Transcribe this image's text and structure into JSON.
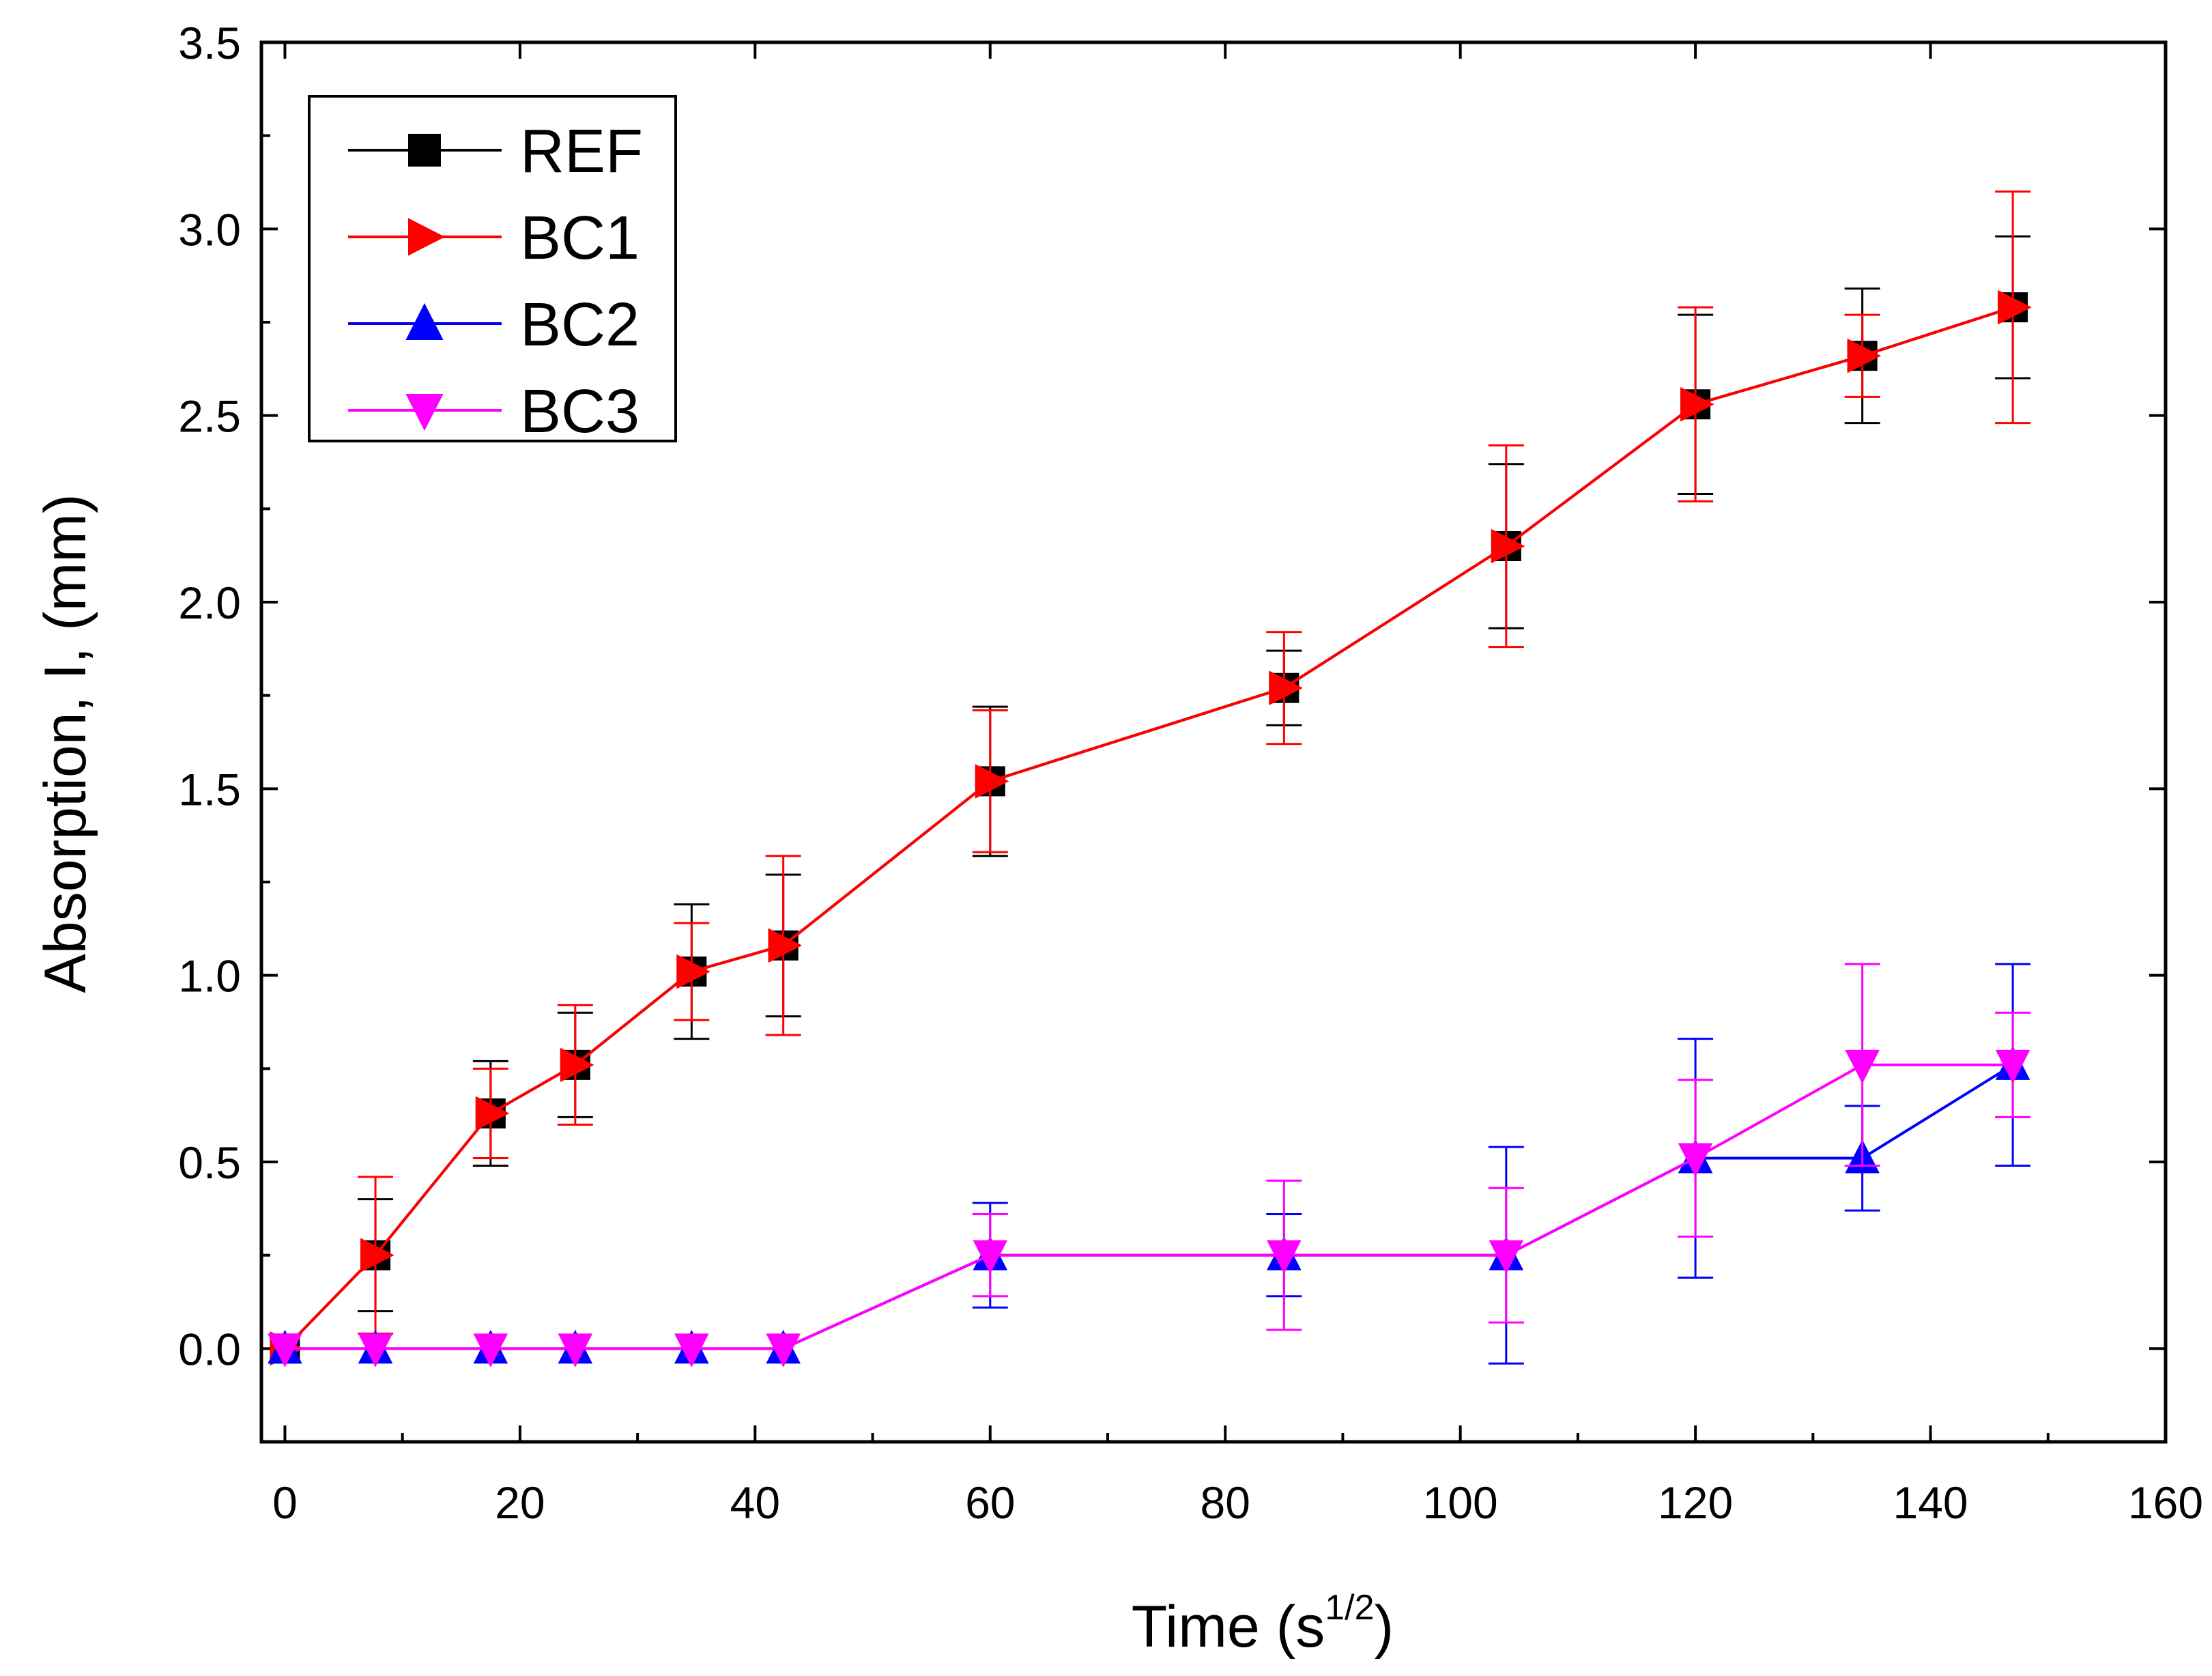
{
  "chart_data": {
    "type": "line",
    "title": "",
    "xlabel": "Time (s",
    "xlabel_sup": "1/2",
    "xlabel_suffix": ")",
    "ylabel": "Absorption, I, (mm)",
    "xlim": [
      -2,
      160
    ],
    "ylim": [
      -0.25,
      3.5
    ],
    "x_ticks": [
      "0",
      "20",
      "40",
      "60",
      "80",
      "100",
      "120",
      "140",
      "160"
    ],
    "y_ticks": [
      "0.0",
      "0.5",
      "1.0",
      "1.5",
      "2.0",
      "2.5",
      "3.0",
      "3.5"
    ],
    "legend_position": "top-left",
    "series": [
      {
        "name": "REF",
        "color": "#000000",
        "marker": "square",
        "x": [
          0,
          7.7,
          17.5,
          24.7,
          34.6,
          42.4,
          60,
          85,
          103.9,
          120,
          134.2,
          147
        ],
        "y": [
          0,
          0.25,
          0.63,
          0.76,
          1.01,
          1.08,
          1.52,
          1.77,
          2.15,
          2.53,
          2.66,
          2.79
        ],
        "err": [
          0,
          0.15,
          0.14,
          0.14,
          0.18,
          0.19,
          0.2,
          0.1,
          0.22,
          0.24,
          0.18,
          0.19
        ]
      },
      {
        "name": "BC1",
        "color": "#ff0000",
        "marker": "triangle-right",
        "x": [
          0,
          7.7,
          17.5,
          24.7,
          34.6,
          42.4,
          60,
          85,
          103.9,
          120,
          134.2,
          147
        ],
        "y": [
          0,
          0.25,
          0.63,
          0.76,
          1.01,
          1.08,
          1.52,
          1.77,
          2.15,
          2.53,
          2.66,
          2.79
        ],
        "err": [
          0,
          0.21,
          0.12,
          0.16,
          0.13,
          0.24,
          0.19,
          0.15,
          0.27,
          0.26,
          0.11,
          0.31
        ]
      },
      {
        "name": "BC2",
        "color": "#0000ff",
        "marker": "triangle-up",
        "x": [
          0,
          7.7,
          17.5,
          24.7,
          34.6,
          42.4,
          60,
          85,
          103.9,
          120,
          134.2,
          147
        ],
        "y": [
          0,
          0,
          0,
          0,
          0,
          0,
          0.25,
          0.25,
          0.25,
          0.51,
          0.51,
          0.76
        ],
        "err": [
          0,
          0,
          0,
          0,
          0,
          0,
          0.14,
          0.11,
          0.29,
          0.32,
          0.14,
          0.27
        ]
      },
      {
        "name": "BC3",
        "color": "#ff00ff",
        "marker": "triangle-down",
        "x": [
          0,
          7.7,
          17.5,
          24.7,
          34.6,
          42.4,
          60,
          85,
          103.9,
          120,
          134.2,
          147
        ],
        "y": [
          0,
          0,
          0,
          0,
          0,
          0,
          0.25,
          0.25,
          0.25,
          0.51,
          0.76,
          0.76
        ],
        "err": [
          0,
          0,
          0,
          0,
          0,
          0,
          0.11,
          0.2,
          0.18,
          0.21,
          0.27,
          0.14
        ]
      }
    ]
  }
}
